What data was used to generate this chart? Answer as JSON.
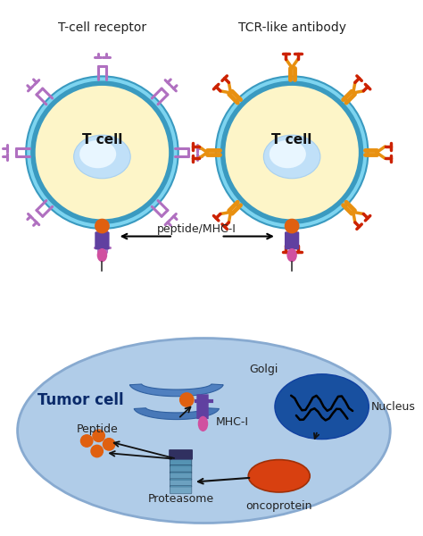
{
  "bg_color": "#ffffff",
  "tcell_left_label": "T-cell receptor",
  "tcell_right_label": "TCR-like antibody",
  "peptide_mhc_label": "peptide/MHC-I",
  "tumor_cell_label": "Tumor cell",
  "golgi_label": "Golgi",
  "mhc_label": "MHC-I",
  "nucleus_label": "Nucleus",
  "peptide_label": "Peptide",
  "proteasome_label": "Proteasome",
  "oncoprotein_label": "oncoprotein",
  "cell_fill": "#fdf5c8",
  "cell_outline_dark": "#3a9ac0",
  "cell_outline_light": "#7dd4f0",
  "nucleus_fill_center": "#e8f6ff",
  "nucleus_fill_edge": "#c0e0f8",
  "tcr_purple": "#b070c0",
  "tcr_orange": "#e89010",
  "tcr_red": "#cc2200",
  "tumor_fill": "#b0cce8",
  "tumor_outline": "#88aad0",
  "golgi_blue": "#5080c0",
  "mhc_purple": "#6040a0",
  "mhc_pink": "#d050a0",
  "orange_ball": "#e06010",
  "nucleus_blue": "#1850a0",
  "onco_orange": "#d84010",
  "prot_blue": "#5090b0",
  "prot_dark": "#303060",
  "tcell_label_color": "#111111",
  "tumor_label_color": "#0a2a6a"
}
